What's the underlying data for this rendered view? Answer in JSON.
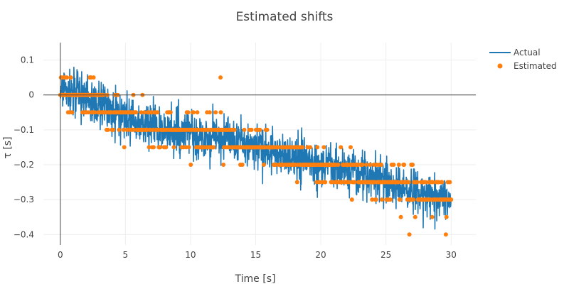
{
  "chart_data": {
    "type": "line",
    "title": "Estimated shifts",
    "xlabel": "Time [s]",
    "ylabel": "τ [s]",
    "xlim": [
      -1.3,
      31.9
    ],
    "ylim": [
      -0.43,
      0.15
    ],
    "x_ticks": [
      0,
      5,
      10,
      15,
      20,
      25,
      30
    ],
    "x_tick_labels": [
      "0",
      "5",
      "10",
      "15",
      "20",
      "25",
      "30"
    ],
    "y_ticks": [
      0.1,
      0,
      -0.1,
      -0.2,
      -0.3,
      -0.4
    ],
    "y_tick_labels": [
      "0.1",
      "0",
      "−0.1",
      "−0.2",
      "−0.3",
      "−0.4"
    ],
    "grid": true,
    "legend_position": "top-right",
    "colors": {
      "actual": "#1f77b4",
      "estimated": "#ff7f0e",
      "zero_line": "#444444",
      "grid": "#eeeeee"
    },
    "series": [
      {
        "name": "Actual",
        "mode": "line",
        "trend": {
          "t": [
            0,
            1,
            2,
            3,
            4,
            5,
            6,
            7,
            8,
            9,
            10,
            11,
            12,
            13,
            14,
            15,
            16,
            17,
            18,
            19,
            20,
            21,
            22,
            23,
            24,
            25,
            26,
            27,
            28,
            29,
            30
          ],
          "tau": [
            0.01,
            0.0,
            -0.01,
            -0.03,
            -0.05,
            -0.07,
            -0.08,
            -0.09,
            -0.1,
            -0.11,
            -0.11,
            -0.12,
            -0.12,
            -0.13,
            -0.14,
            -0.15,
            -0.16,
            -0.17,
            -0.18,
            -0.19,
            -0.2,
            -0.21,
            -0.22,
            -0.23,
            -0.24,
            -0.25,
            -0.26,
            -0.27,
            -0.28,
            -0.29,
            -0.3
          ]
        },
        "samples": 1500,
        "noise": 0.032,
        "seed": 12345
      },
      {
        "name": "Estimated",
        "mode": "markers",
        "quantum": 0.05,
        "samples": 600,
        "seed": 678
      }
    ],
    "notable_points": [
      [
        0.1,
        0.05
      ],
      [
        12.3,
        0.05
      ],
      [
        26.8,
        -0.4
      ],
      [
        29.6,
        -0.4
      ]
    ]
  }
}
